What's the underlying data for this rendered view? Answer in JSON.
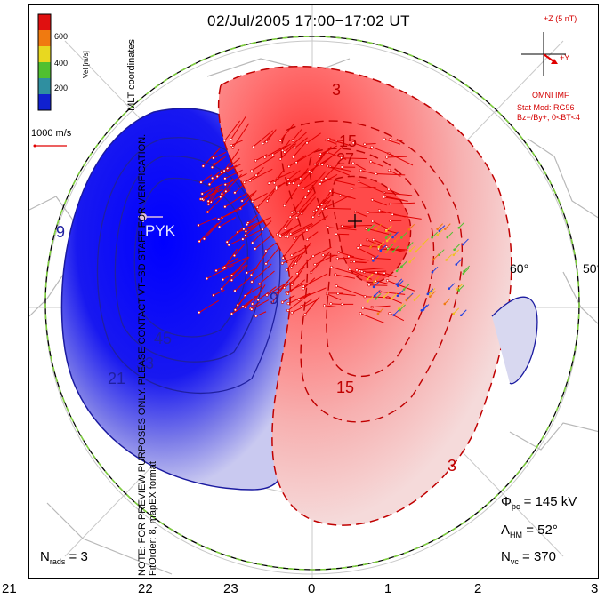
{
  "title": "02/Jul/2005 17:00−17:02 UT",
  "side_notes": {
    "line1": "MLT coordinates",
    "line2": "NOTE: FOR PREVIEW PURPOSES ONLY. PLEASE CONTACT VT−SD STAFF FOR VERIFICATION.",
    "line3": "FitOrder: 8, mapEX format"
  },
  "colorbar": {
    "ticks": [
      "600",
      "400",
      "200"
    ],
    "label": "Vel [m/s]",
    "colors": [
      "#e01010",
      "#f07a10",
      "#e8d820",
      "#50c030",
      "#2f8fa0",
      "#1020d0"
    ]
  },
  "scale_label": "1000 m/s",
  "imf": {
    "z_label": "+Z (5 nT)",
    "y_label": "+Y",
    "source": "OMNI IMF",
    "model": "Stat Mod: RG96",
    "condition": "Bz−/By+, 0<BT<4"
  },
  "contour_labels": {
    "neg": [
      "9",
      "45",
      "33",
      "21",
      "9"
    ],
    "pos": [
      "3",
      "15",
      "27",
      "15",
      "3"
    ]
  },
  "station": "PYK",
  "lat_labels": [
    "60°",
    "50°"
  ],
  "stats": {
    "phi_pc": "145 kV",
    "lambda_hm": "52°",
    "n_vc": "370",
    "n_rads": "3"
  },
  "mlt_axis": [
    "21",
    "22",
    "23",
    "0",
    "1",
    "2",
    "3"
  ],
  "colors": {
    "negative": "#1a1aff",
    "positive": "#ff3b3b",
    "vector_red": "#e00000",
    "boundary_green": "#7fcf3f"
  }
}
